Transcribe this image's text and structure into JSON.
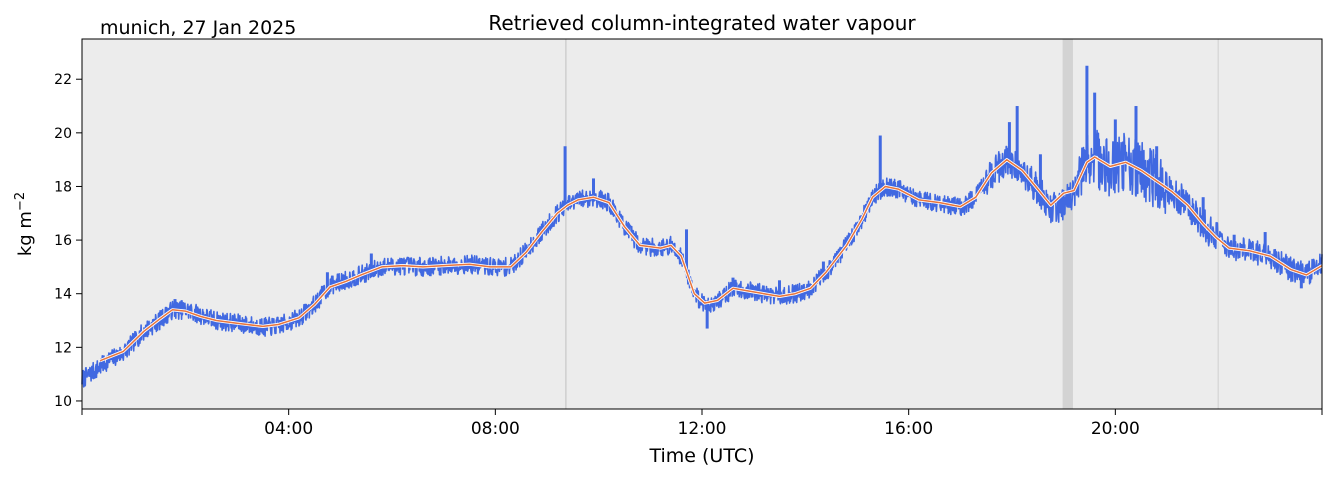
{
  "chart_data": {
    "type": "line",
    "title": "Retrieved column-integrated water vapour",
    "subtitle": "munich, 27 Jan 2025",
    "xlabel": "Time (UTC)",
    "ylabel": "kg m",
    "ylabel_sup": "−2",
    "xlim": [
      0,
      24
    ],
    "ylim": [
      9.7,
      23.5
    ],
    "grid": false,
    "plot_background": "#ececec",
    "x_ticks": [
      {
        "value": 4,
        "label": "04:00"
      },
      {
        "value": 8,
        "label": "08:00"
      },
      {
        "value": 12,
        "label": "12:00"
      },
      {
        "value": 16,
        "label": "16:00"
      },
      {
        "value": 20,
        "label": "20:00"
      }
    ],
    "y_ticks": [
      {
        "value": 10,
        "label": "10"
      },
      {
        "value": 12,
        "label": "12"
      },
      {
        "value": 14,
        "label": "14"
      },
      {
        "value": 16,
        "label": "16"
      },
      {
        "value": 18,
        "label": "18"
      },
      {
        "value": 20,
        "label": "20"
      },
      {
        "value": 22,
        "label": "22"
      }
    ],
    "shaded_intervals": [
      {
        "start": 9.35,
        "end": 9.38,
        "color": "#d0d0d0"
      },
      {
        "start": 18.98,
        "end": 19.18,
        "color": "#d3d3d3"
      },
      {
        "start": 21.98,
        "end": 22.0,
        "color": "#d0d0d0"
      }
    ],
    "series": [
      {
        "kind": "raw",
        "color": "#4169e1",
        "points": [
          [
            0.0,
            10.8
          ],
          [
            0.3,
            11.2
          ],
          [
            0.5,
            11.5
          ],
          [
            0.8,
            11.8
          ],
          [
            1.0,
            12.2
          ],
          [
            1.2,
            12.6
          ],
          [
            1.5,
            13.0
          ],
          [
            1.75,
            13.4
          ],
          [
            2.0,
            13.4
          ],
          [
            2.3,
            13.2
          ],
          [
            2.6,
            13.0
          ],
          [
            3.0,
            12.9
          ],
          [
            3.5,
            12.75
          ],
          [
            3.8,
            12.8
          ],
          [
            4.2,
            13.1
          ],
          [
            4.5,
            13.6
          ],
          [
            4.8,
            14.3
          ],
          [
            5.1,
            14.5
          ],
          [
            5.4,
            14.7
          ],
          [
            5.8,
            15.0
          ],
          [
            6.2,
            15.05
          ],
          [
            6.6,
            15.0
          ],
          [
            7.0,
            15.05
          ],
          [
            7.5,
            15.1
          ],
          [
            7.9,
            15.0
          ],
          [
            8.3,
            15.0
          ],
          [
            8.6,
            15.6
          ],
          [
            8.9,
            16.3
          ],
          [
            9.2,
            17.0
          ],
          [
            9.4,
            17.3
          ],
          [
            9.6,
            17.5
          ],
          [
            9.9,
            17.6
          ],
          [
            10.2,
            17.4
          ],
          [
            10.5,
            16.5
          ],
          [
            10.8,
            15.8
          ],
          [
            11.2,
            15.7
          ],
          [
            11.4,
            15.8
          ],
          [
            11.6,
            15.4
          ],
          [
            11.85,
            14.0
          ],
          [
            12.05,
            13.6
          ],
          [
            12.3,
            13.7
          ],
          [
            12.6,
            14.2
          ],
          [
            12.9,
            14.1
          ],
          [
            13.2,
            14.0
          ],
          [
            13.5,
            13.9
          ],
          [
            13.8,
            14.0
          ],
          [
            14.1,
            14.2
          ],
          [
            14.4,
            14.8
          ],
          [
            14.8,
            15.8
          ],
          [
            15.1,
            16.8
          ],
          [
            15.3,
            17.6
          ],
          [
            15.55,
            18.0
          ],
          [
            15.8,
            17.9
          ],
          [
            16.2,
            17.5
          ],
          [
            16.6,
            17.4
          ],
          [
            17.0,
            17.2
          ],
          [
            17.3,
            17.6
          ],
          [
            17.6,
            18.5
          ],
          [
            17.9,
            19.0
          ],
          [
            18.2,
            18.6
          ],
          [
            18.5,
            17.9
          ],
          [
            18.75,
            17.2
          ],
          [
            19.0,
            17.3
          ],
          [
            19.2,
            17.8
          ],
          [
            19.45,
            18.9
          ],
          [
            19.6,
            19.1
          ],
          [
            19.9,
            18.7
          ],
          [
            20.2,
            18.9
          ],
          [
            20.5,
            18.6
          ],
          [
            20.8,
            18.2
          ],
          [
            21.1,
            17.8
          ],
          [
            21.4,
            17.3
          ],
          [
            21.7,
            16.6
          ],
          [
            21.95,
            16.1
          ],
          [
            22.2,
            15.7
          ],
          [
            22.6,
            15.6
          ],
          [
            23.0,
            15.4
          ],
          [
            23.4,
            14.9
          ],
          [
            23.7,
            14.7
          ],
          [
            24.0,
            15.1
          ]
        ],
        "spikes": [
          [
            1.8,
            13.8
          ],
          [
            4.75,
            14.8
          ],
          [
            5.6,
            15.5
          ],
          [
            9.35,
            19.5
          ],
          [
            9.9,
            18.3
          ],
          [
            11.7,
            16.4
          ],
          [
            12.1,
            12.7
          ],
          [
            12.6,
            14.6
          ],
          [
            13.5,
            14.5
          ],
          [
            14.35,
            15.2
          ],
          [
            15.45,
            19.9
          ],
          [
            16.35,
            17.2
          ],
          [
            17.95,
            20.4
          ],
          [
            18.1,
            21.0
          ],
          [
            18.55,
            19.2
          ],
          [
            19.45,
            22.5
          ],
          [
            19.6,
            21.5
          ],
          [
            20.0,
            20.5
          ],
          [
            20.4,
            21.0
          ],
          [
            20.8,
            19.5
          ],
          [
            21.7,
            17.6
          ],
          [
            22.3,
            16.2
          ],
          [
            22.9,
            16.3
          ],
          [
            23.6,
            14.2
          ]
        ]
      },
      {
        "kind": "smoothed",
        "color": "#e8743b",
        "points": [
          [
            0.35,
            11.5
          ],
          [
            0.8,
            11.85
          ],
          [
            1.2,
            12.6
          ],
          [
            1.5,
            13.05
          ],
          [
            1.75,
            13.4
          ],
          [
            2.0,
            13.35
          ],
          [
            2.3,
            13.15
          ],
          [
            2.6,
            13.0
          ],
          [
            3.0,
            12.9
          ],
          [
            3.5,
            12.78
          ],
          [
            3.8,
            12.85
          ],
          [
            4.2,
            13.1
          ],
          [
            4.5,
            13.6
          ],
          [
            4.8,
            14.25
          ],
          [
            5.1,
            14.45
          ],
          [
            5.4,
            14.7
          ],
          [
            5.8,
            15.0
          ],
          [
            6.2,
            15.05
          ],
          [
            6.6,
            15.0
          ],
          [
            7.0,
            15.05
          ],
          [
            7.5,
            15.1
          ],
          [
            7.9,
            15.0
          ],
          [
            8.3,
            15.0
          ],
          [
            8.6,
            15.55
          ],
          [
            8.9,
            16.3
          ],
          [
            9.2,
            17.0
          ],
          [
            9.4,
            17.3
          ],
          [
            9.6,
            17.5
          ],
          [
            9.9,
            17.6
          ],
          [
            10.2,
            17.4
          ],
          [
            10.5,
            16.5
          ],
          [
            10.8,
            15.8
          ],
          [
            11.2,
            15.7
          ],
          [
            11.4,
            15.8
          ],
          [
            11.6,
            15.4
          ],
          [
            11.85,
            14.0
          ],
          [
            12.05,
            13.65
          ],
          [
            12.3,
            13.75
          ],
          [
            12.6,
            14.2
          ],
          [
            12.9,
            14.1
          ],
          [
            13.2,
            14.0
          ],
          [
            13.5,
            13.9
          ],
          [
            13.8,
            14.0
          ],
          [
            14.1,
            14.2
          ],
          [
            14.4,
            14.8
          ],
          [
            14.8,
            15.8
          ],
          [
            15.1,
            16.8
          ],
          [
            15.3,
            17.6
          ],
          [
            15.55,
            18.0
          ],
          [
            15.8,
            17.9
          ],
          [
            16.2,
            17.5
          ],
          [
            16.6,
            17.4
          ],
          [
            17.0,
            17.25
          ],
          [
            17.3,
            17.6
          ],
          [
            17.6,
            18.5
          ],
          [
            17.9,
            19.0
          ],
          [
            18.2,
            18.6
          ],
          [
            18.5,
            17.9
          ],
          [
            18.75,
            17.3
          ],
          [
            19.0,
            17.75
          ],
          [
            19.2,
            17.85
          ],
          [
            19.45,
            18.9
          ],
          [
            19.6,
            19.1
          ],
          [
            19.9,
            18.75
          ],
          [
            20.2,
            18.9
          ],
          [
            20.5,
            18.6
          ],
          [
            20.8,
            18.2
          ],
          [
            21.1,
            17.8
          ],
          [
            21.4,
            17.3
          ],
          [
            21.7,
            16.6
          ],
          [
            21.95,
            16.1
          ],
          [
            22.2,
            15.7
          ],
          [
            22.6,
            15.6
          ],
          [
            23.0,
            15.4
          ],
          [
            23.4,
            14.9
          ],
          [
            23.7,
            14.7
          ],
          [
            24.0,
            15.05
          ]
        ]
      }
    ]
  }
}
